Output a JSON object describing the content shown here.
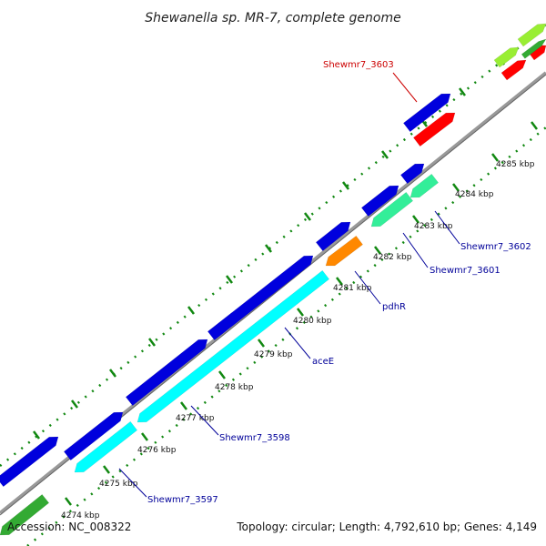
{
  "title": "Shewanella sp. MR-7, complete genome",
  "footer": {
    "accession": "Accession: NC_008322",
    "topology": "Topology: circular; Length: 4,792,610 bp; Genes: 4,149"
  },
  "ticks": [
    "4274 kbp",
    "4275 kbp",
    "4276 kbp",
    "4277 kbp",
    "4278 kbp",
    "4279 kbp",
    "4280 kbp",
    "4281 kbp",
    "4282 kbp",
    "4283 kbp",
    "4284 kbp",
    "4285 kbp"
  ],
  "gene_labels": [
    {
      "text": "Shewmr7_3603",
      "color": "#cc0000"
    },
    {
      "text": "Shewmr7_3602",
      "color": "#000099"
    },
    {
      "text": "Shewmr7_3601",
      "color": "#000099"
    },
    {
      "text": "pdhR",
      "color": "#000099"
    },
    {
      "text": "aceE",
      "color": "#000099"
    },
    {
      "text": "Shewmr7_3598",
      "color": "#000099"
    },
    {
      "text": "Shewmr7_3597",
      "color": "#000099"
    }
  ],
  "colors": {
    "forward_gene": "#0000dd",
    "rna": "#ff0000",
    "reverse_gene": "#00ffff",
    "reverse_gene_2": "#33ee99",
    "regulator": "#ff8800",
    "green_gene": "#33aa33",
    "lime_gene": "#99ee33",
    "backbone": "#888888",
    "tick": "#118811"
  }
}
